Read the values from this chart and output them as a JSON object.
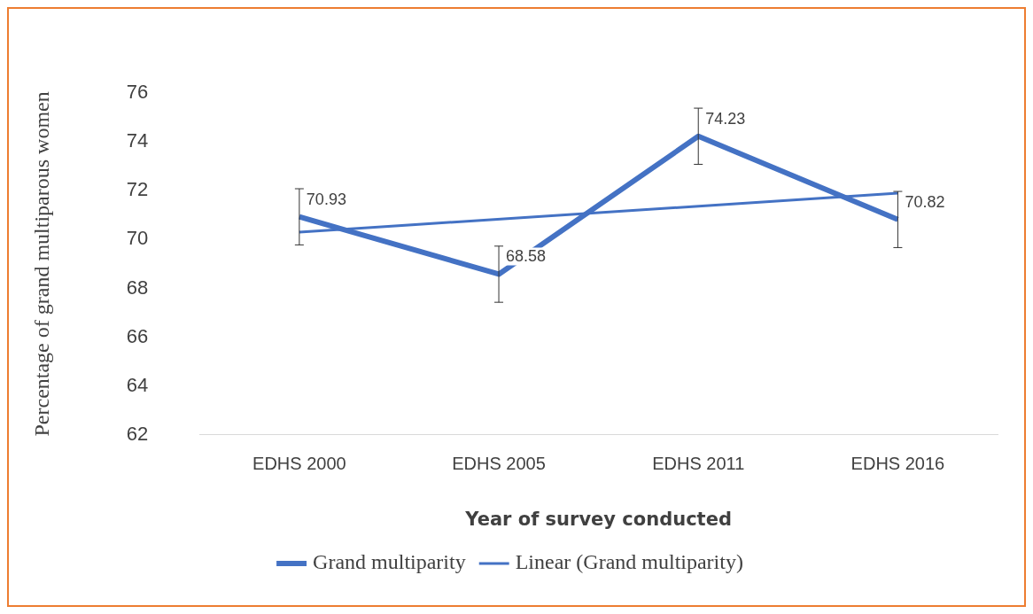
{
  "chart_data": {
    "type": "line",
    "xlabel": "Year of survey conducted",
    "ylabel": "Percentage of grand multiparous women",
    "categories": [
      "EDHS 2000",
      "EDHS 2005",
      "EDHS 2011",
      "EDHS 2016"
    ],
    "series": [
      {
        "name": "Grand multiparity",
        "color": "#4472c4",
        "values": [
          70.93,
          68.58,
          74.23,
          70.82
        ],
        "errors": [
          1.15,
          1.15,
          1.15,
          1.15
        ],
        "value_labels": [
          "70.93",
          "68.58",
          "74.23",
          "70.82"
        ]
      },
      {
        "name": "Linear (Grand multiparity)",
        "type": "line",
        "color": "#4472c4",
        "x": [
          "EDHS 2000",
          "EDHS 2016"
        ],
        "values": [
          70.3,
          71.9
        ]
      }
    ],
    "ylim": [
      62,
      76
    ],
    "yticks": [
      62,
      64,
      66,
      68,
      70,
      72,
      74,
      76
    ],
    "grid": false,
    "legend": "bottom",
    "marker": "none"
  }
}
